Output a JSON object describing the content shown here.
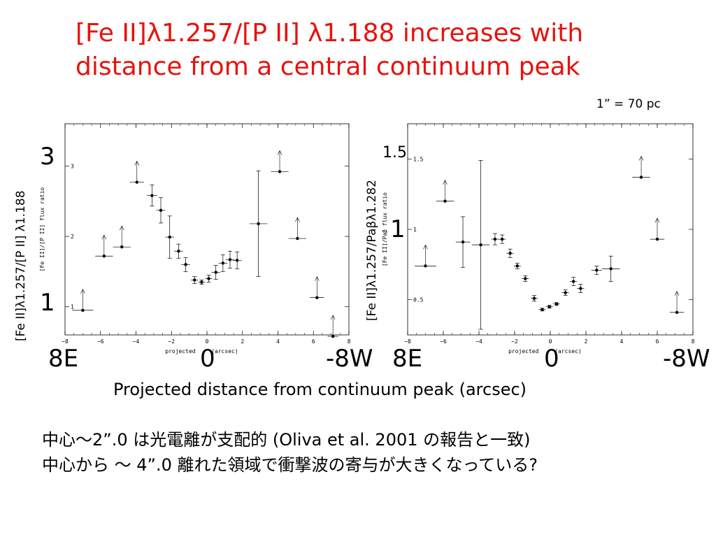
{
  "slide": {
    "title_line1": "[Fe II]λ1.257/[P II] λ1.188 increases with",
    "title_line2": "distance from a central continuum peak",
    "scale_note": "1” = 70 pc",
    "common_xlabel": "Projected distance from continuum peak (arcsec)",
    "note_line1": "中心～2”.0 は光電離が支配的 (Oliva et al. 2001 の報告と一致)",
    "note_line2": "中心から ～ 4”.0 離れた領域で衝撃波の寄与が大きくなっている?",
    "left_ylabel": "[Fe II]λ1.257/[P II] λ1.188",
    "right_ylabel": "[Fe II]λ1.257/Paβλ1.282",
    "left_tick_3": "3",
    "left_tick_1": "1",
    "right_tick_15": "1.5",
    "right_tick_1": "1",
    "axis_8E": "8E",
    "axis_0": "0",
    "axis_8W": "-8W"
  },
  "chart_data": [
    {
      "type": "scatter",
      "ylabel": "[Fe II]/[P II] flux ratio",
      "xlabel": "projected (arcsec)",
      "xlim": [
        -8,
        8
      ],
      "ylim": [
        0.6,
        3.6
      ],
      "xticks": [
        -8,
        -6,
        -4,
        -2,
        0,
        2,
        4,
        6,
        8
      ],
      "yticks": [
        1,
        2,
        3
      ],
      "points": [
        {
          "x": -7.0,
          "y": 0.95,
          "xerr": 0.6,
          "lower_limit": true
        },
        {
          "x": -5.8,
          "y": 1.72,
          "xerr": 0.5,
          "lower_limit": true
        },
        {
          "x": -4.8,
          "y": 1.85,
          "xerr": 0.5,
          "lower_limit": true
        },
        {
          "x": -3.95,
          "y": 2.77,
          "xerr": 0.4,
          "lower_limit": true
        },
        {
          "x": -3.1,
          "y": 2.58,
          "xerr": 0.3,
          "yerr": 0.15
        },
        {
          "x": -2.6,
          "y": 2.37,
          "xerr": 0.25,
          "yerr": 0.18
        },
        {
          "x": -2.1,
          "y": 1.99,
          "xerr": 0.25,
          "yerr": 0.3
        },
        {
          "x": -1.6,
          "y": 1.79,
          "xerr": 0.25,
          "yerr": 0.1
        },
        {
          "x": -1.2,
          "y": 1.6,
          "xerr": 0.25,
          "yerr": 0.1
        },
        {
          "x": -0.7,
          "y": 1.38,
          "xerr": 0.2,
          "yerr": 0.05
        },
        {
          "x": -0.3,
          "y": 1.35,
          "xerr": 0.2,
          "yerr": 0.03
        },
        {
          "x": 0.1,
          "y": 1.4,
          "xerr": 0.2,
          "yerr": 0.05
        },
        {
          "x": 0.5,
          "y": 1.49,
          "xerr": 0.25,
          "yerr": 0.1
        },
        {
          "x": 0.9,
          "y": 1.62,
          "xerr": 0.25,
          "yerr": 0.12
        },
        {
          "x": 1.3,
          "y": 1.67,
          "xerr": 0.25,
          "yerr": 0.12
        },
        {
          "x": 1.7,
          "y": 1.66,
          "xerr": 0.25,
          "yerr": 0.12
        },
        {
          "x": 2.9,
          "y": 2.18,
          "xerr": 0.5,
          "yerr": 0.75
        },
        {
          "x": 4.1,
          "y": 2.92,
          "xerr": 0.5,
          "lower_limit": true
        },
        {
          "x": 5.1,
          "y": 1.97,
          "xerr": 0.5,
          "lower_limit": true
        },
        {
          "x": 6.2,
          "y": 1.13,
          "xerr": 0.4,
          "lower_limit": true
        },
        {
          "x": 7.1,
          "y": 0.58,
          "xerr": 0.3,
          "lower_limit": true
        }
      ]
    },
    {
      "type": "scatter",
      "ylabel": "[Fe II]/Paβ flux ratio",
      "xlabel": "projected (arcsec)",
      "xlim": [
        -8,
        8
      ],
      "ylim": [
        0.25,
        1.75
      ],
      "xticks": [
        -8,
        -6,
        -4,
        -2,
        0,
        2,
        4,
        6,
        8
      ],
      "yticks": [
        0.5,
        1,
        1.5
      ],
      "points": [
        {
          "x": -7.0,
          "y": 0.74,
          "xerr": 0.6,
          "lower_limit": true
        },
        {
          "x": -5.9,
          "y": 1.2,
          "xerr": 0.5,
          "lower_limit": true
        },
        {
          "x": -4.9,
          "y": 0.91,
          "xerr": 0.4,
          "yerr": 0.18
        },
        {
          "x": -3.9,
          "y": 0.89,
          "xerr": 0.5,
          "yerr": 0.6
        },
        {
          "x": -3.1,
          "y": 0.93,
          "xerr": 0.2,
          "yerr": 0.04
        },
        {
          "x": -2.7,
          "y": 0.93,
          "xerr": 0.2,
          "yerr": 0.03
        },
        {
          "x": -2.25,
          "y": 0.83,
          "xerr": 0.2,
          "yerr": 0.03
        },
        {
          "x": -1.85,
          "y": 0.74,
          "xerr": 0.2,
          "yerr": 0.02
        },
        {
          "x": -1.4,
          "y": 0.65,
          "xerr": 0.2,
          "yerr": 0.02
        },
        {
          "x": -0.9,
          "y": 0.51,
          "xerr": 0.2,
          "yerr": 0.02
        },
        {
          "x": -0.45,
          "y": 0.43,
          "xerr": 0.2,
          "yerr": 0.01
        },
        {
          "x": -0.05,
          "y": 0.45,
          "xerr": 0.2,
          "yerr": 0.01
        },
        {
          "x": 0.35,
          "y": 0.47,
          "xerr": 0.2,
          "yerr": 0.01
        },
        {
          "x": 0.85,
          "y": 0.55,
          "xerr": 0.2,
          "yerr": 0.02
        },
        {
          "x": 1.3,
          "y": 0.63,
          "xerr": 0.2,
          "yerr": 0.03
        },
        {
          "x": 1.7,
          "y": 0.58,
          "xerr": 0.2,
          "yerr": 0.03
        },
        {
          "x": 2.6,
          "y": 0.71,
          "xerr": 0.3,
          "yerr": 0.03
        },
        {
          "x": 3.4,
          "y": 0.72,
          "xerr": 0.5,
          "yerr": 0.09
        },
        {
          "x": 5.1,
          "y": 1.37,
          "xerr": 0.5,
          "lower_limit": true
        },
        {
          "x": 6.0,
          "y": 0.93,
          "xerr": 0.4,
          "lower_limit": true
        },
        {
          "x": 7.1,
          "y": 0.41,
          "xerr": 0.4,
          "lower_limit": true
        }
      ]
    }
  ]
}
